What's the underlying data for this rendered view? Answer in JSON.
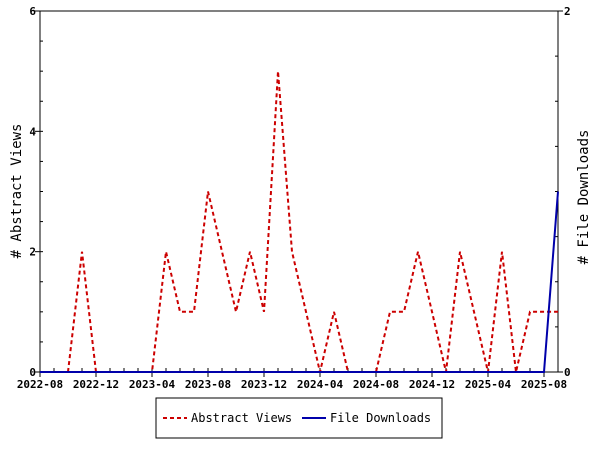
{
  "chart_data": {
    "type": "line",
    "x": [
      "2022-08",
      "2022-09",
      "2022-10",
      "2022-11",
      "2022-12",
      "2023-01",
      "2023-02",
      "2023-03",
      "2023-04",
      "2023-05",
      "2023-06",
      "2023-07",
      "2023-08",
      "2023-09",
      "2023-10",
      "2023-11",
      "2023-12",
      "2024-01",
      "2024-02",
      "2024-03",
      "2024-04",
      "2024-05",
      "2024-06",
      "2024-07",
      "2024-08",
      "2024-09",
      "2024-10",
      "2024-11",
      "2024-12",
      "2025-01",
      "2025-02",
      "2025-03",
      "2025-04",
      "2025-05",
      "2025-06",
      "2025-07",
      "2025-08",
      "2025-09"
    ],
    "x_ticks": [
      "2022-08",
      "2022-12",
      "2023-04",
      "2023-08",
      "2023-12",
      "2024-04",
      "2024-08",
      "2024-12",
      "2025-04",
      "2025-08"
    ],
    "series": [
      {
        "name": "Abstract Views",
        "axis": "left",
        "color": "#cc0000",
        "style": "dashed",
        "values": [
          0,
          0,
          0,
          2,
          0,
          0,
          0,
          0,
          0,
          2,
          1,
          1,
          3,
          2,
          1,
          2,
          1,
          5,
          2,
          1,
          0,
          1,
          0,
          0,
          0,
          1,
          1,
          2,
          1,
          0,
          2,
          1,
          0,
          2,
          0,
          1,
          1,
          1
        ]
      },
      {
        "name": "File Downloads",
        "axis": "right",
        "color": "#0000aa",
        "style": "solid",
        "values": [
          0,
          0,
          0,
          0,
          0,
          0,
          0,
          0,
          0,
          0,
          0,
          0,
          0,
          0,
          0,
          0,
          0,
          0,
          0,
          0,
          0,
          0,
          0,
          0,
          0,
          0,
          0,
          0,
          0,
          0,
          0,
          0,
          0,
          0,
          0,
          0,
          0,
          1
        ]
      }
    ],
    "y_left": {
      "label": "# Abstract Views",
      "ylim": [
        0,
        6
      ],
      "ticks": [
        "0",
        "2",
        "4",
        "6"
      ]
    },
    "y_right": {
      "label": "# File Downloads",
      "ylim": [
        0,
        2
      ],
      "ticks": [
        "0",
        "2"
      ]
    },
    "grid": false,
    "legend": {
      "placement": "bottom-center",
      "items": [
        "Abstract Views",
        "File Downloads"
      ]
    }
  }
}
